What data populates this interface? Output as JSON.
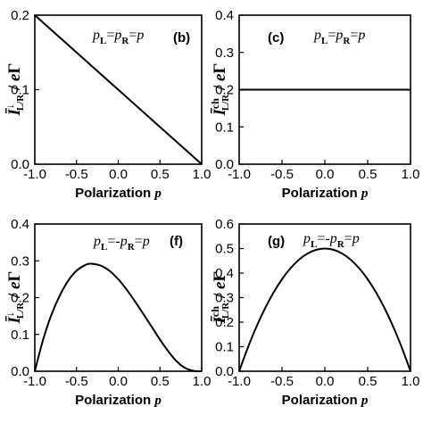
{
  "chart_data": [
    {
      "panel": "(b)",
      "type": "line",
      "annotation": "p_L=p_R=p",
      "xlabel": "Polarization p",
      "ylabel": "Ī↓_L/R / eΓ",
      "xlim": [
        -1.0,
        1.0
      ],
      "ylim": [
        0.0,
        0.2
      ],
      "xticks": [
        "-1.0",
        "-0.5",
        "0.0",
        "0.5",
        "1.0"
      ],
      "yticks": [
        "0.0",
        "0.1",
        "0.2"
      ],
      "series": [
        {
          "x": [
            -1.0,
            -0.5,
            0.0,
            0.5,
            1.0
          ],
          "y": [
            0.2,
            0.15,
            0.1,
            0.05,
            0.0
          ]
        }
      ]
    },
    {
      "panel": "(c)",
      "type": "line",
      "annotation": "p_L=p_R=p",
      "xlabel": "Polarization p",
      "ylabel": "Īch_L/R / eΓ",
      "xlim": [
        -1.0,
        1.0
      ],
      "ylim": [
        0.0,
        0.4
      ],
      "xticks": [
        "-1.0",
        "-0.5",
        "0.0",
        "0.5",
        "1.0"
      ],
      "yticks": [
        "0.0",
        "0.1",
        "0.2",
        "0.3",
        "0.4"
      ],
      "series": [
        {
          "x": [
            -1.0,
            -0.5,
            0.0,
            0.5,
            1.0
          ],
          "y": [
            0.2,
            0.2,
            0.2,
            0.2,
            0.2
          ]
        }
      ]
    },
    {
      "panel": "(f)",
      "type": "line",
      "annotation": "p_L=-p_R=p",
      "xlabel": "Polarization p",
      "ylabel": "Ī↓_L/R / eΓ",
      "xlim": [
        -1.0,
        1.0
      ],
      "ylim": [
        0.0,
        0.4
      ],
      "xticks": [
        "-1.0",
        "-0.5",
        "0.0",
        "0.5",
        "1.0"
      ],
      "yticks": [
        "0.0",
        "0.1",
        "0.2",
        "0.3",
        "0.4"
      ],
      "series": [
        {
          "x": [
            -1.0,
            -0.9,
            -0.8,
            -0.7,
            -0.6,
            -0.5,
            -0.4,
            -0.33,
            -0.2,
            -0.1,
            0.0,
            0.1,
            0.2,
            0.3,
            0.4,
            0.5,
            0.6,
            0.7,
            0.8,
            0.9,
            1.0
          ],
          "y": [
            0.0,
            0.086,
            0.154,
            0.206,
            0.246,
            0.273,
            0.288,
            0.292,
            0.286,
            0.272,
            0.25,
            0.222,
            0.19,
            0.156,
            0.121,
            0.086,
            0.054,
            0.027,
            0.009,
            0.0012,
            0.0
          ]
        }
      ]
    },
    {
      "panel": "(g)",
      "type": "line",
      "annotation": "p_L=-p_R=p",
      "xlabel": "Polarization p",
      "ylabel": "Īch_L/R / eΓ",
      "xlim": [
        -1.0,
        1.0
      ],
      "ylim": [
        0.0,
        0.6
      ],
      "xticks": [
        "-1.0",
        "-0.5",
        "0.0",
        "0.5",
        "1.0"
      ],
      "yticks": [
        "0.0",
        "0.1",
        "0.2",
        "0.3",
        "0.4",
        "0.5",
        "0.6"
      ],
      "series": [
        {
          "x": [
            -1.0,
            -0.9,
            -0.8,
            -0.7,
            -0.6,
            -0.5,
            -0.4,
            -0.3,
            -0.2,
            -0.1,
            0.0,
            0.1,
            0.2,
            0.3,
            0.4,
            0.5,
            0.6,
            0.7,
            0.8,
            0.9,
            1.0
          ],
          "y": [
            0.0,
            0.095,
            0.18,
            0.255,
            0.32,
            0.375,
            0.42,
            0.455,
            0.48,
            0.495,
            0.5,
            0.495,
            0.48,
            0.455,
            0.42,
            0.375,
            0.32,
            0.255,
            0.18,
            0.095,
            0.0
          ]
        }
      ]
    }
  ]
}
